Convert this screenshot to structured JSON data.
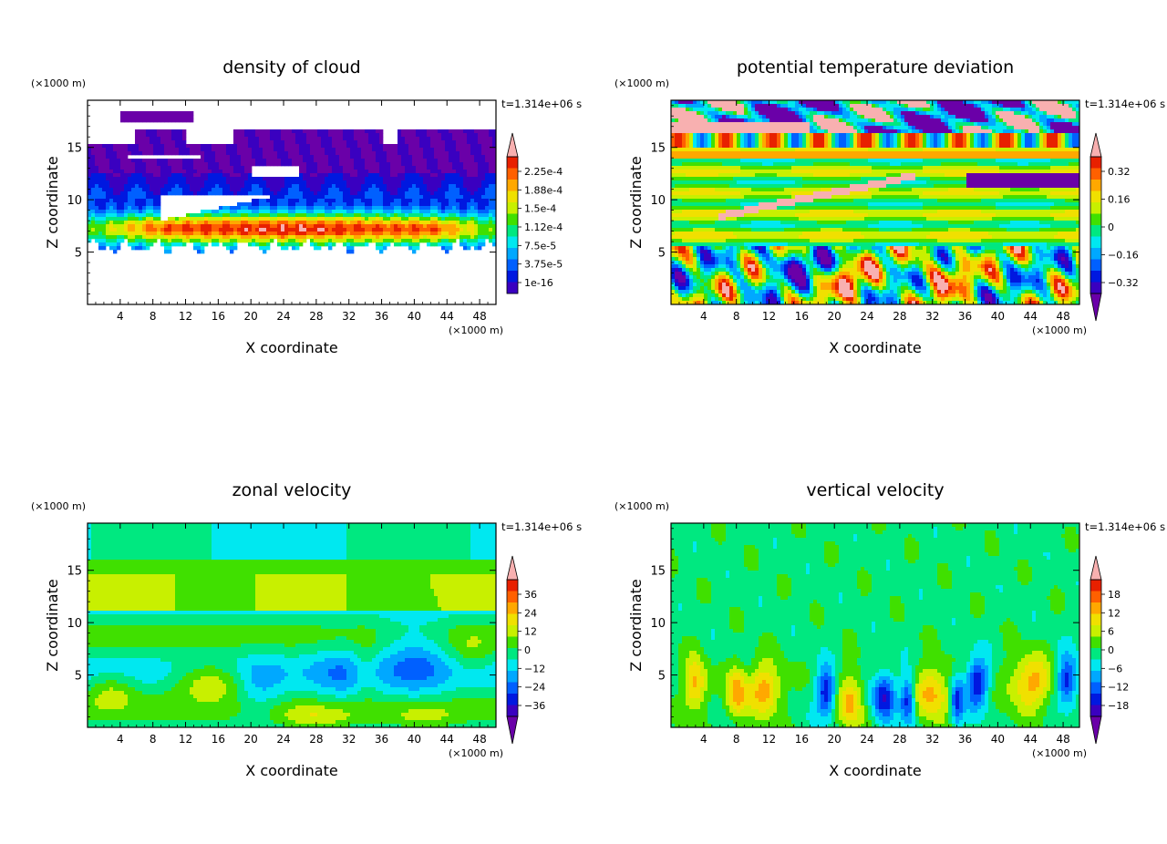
{
  "chart_data": [
    {
      "type": "heatmap",
      "title": "density of cloud",
      "xlabel": "X coordinate",
      "ylabel": "Z coordinate",
      "x_unit": "(×1000 m)",
      "y_unit": "(×1000 m)",
      "time_label": "t=1.314e+06 s",
      "xlim": [
        0,
        50
      ],
      "ylim": [
        0,
        19.5
      ],
      "xticks": [
        "4",
        "8",
        "12",
        "16",
        "20",
        "24",
        "28",
        "32",
        "36",
        "40",
        "44",
        "48"
      ],
      "yticks": [
        "5",
        "10",
        "15"
      ],
      "colorbar_labels": [
        "2.25e-4",
        "1.88e-4",
        "1.5e-4",
        "1.12e-4",
        "7.5e-5",
        "3.75e-5",
        "1e-16"
      ],
      "colorbar_triangles": "top",
      "field": "cloud"
    },
    {
      "type": "heatmap",
      "title": "potential temperature deviation",
      "xlabel": "X coordinate",
      "ylabel": "Z coordinate",
      "x_unit": "(×1000 m)",
      "y_unit": "(×1000 m)",
      "time_label": "t=1.314e+06 s",
      "xlim": [
        0,
        50
      ],
      "ylim": [
        0,
        19.5
      ],
      "xticks": [
        "4",
        "8",
        "12",
        "16",
        "20",
        "24",
        "28",
        "32",
        "36",
        "40",
        "44",
        "48"
      ],
      "yticks": [
        "5",
        "10",
        "15"
      ],
      "colorbar_labels": [
        "0.32",
        "0.16",
        "0",
        "-0.16",
        "-0.32"
      ],
      "colorbar_triangles": "both",
      "field": "theta"
    },
    {
      "type": "heatmap",
      "title": "zonal velocity",
      "xlabel": "X coordinate",
      "ylabel": "Z coordinate",
      "x_unit": "(×1000 m)",
      "y_unit": "(×1000 m)",
      "time_label": "t=1.314e+06 s",
      "xlim": [
        0,
        50
      ],
      "ylim": [
        0,
        19.5
      ],
      "xticks": [
        "4",
        "8",
        "12",
        "16",
        "20",
        "24",
        "28",
        "32",
        "36",
        "40",
        "44",
        "48"
      ],
      "yticks": [
        "5",
        "10",
        "15"
      ],
      "colorbar_labels": [
        "36",
        "24",
        "12",
        "0",
        "-12",
        "-24",
        "-36"
      ],
      "colorbar_triangles": "both",
      "field": "u"
    },
    {
      "type": "heatmap",
      "title": "vertical velocity",
      "xlabel": "X coordinate",
      "ylabel": "Z coordinate",
      "x_unit": "(×1000 m)",
      "y_unit": "(×1000 m)",
      "time_label": "t=1.314e+06 s",
      "xlim": [
        0,
        50
      ],
      "ylim": [
        0,
        19.5
      ],
      "xticks": [
        "4",
        "8",
        "12",
        "16",
        "20",
        "24",
        "28",
        "32",
        "36",
        "40",
        "44",
        "48"
      ],
      "yticks": [
        "5",
        "10",
        "15"
      ],
      "colorbar_labels": [
        "18",
        "12",
        "6",
        "0",
        "-6",
        "-12",
        "-18"
      ],
      "colorbar_triangles": "both",
      "field": "w"
    }
  ],
  "colors": {
    "palette": [
      "#6a00a8",
      "#3a00c0",
      "#0018e0",
      "#0060ff",
      "#00a8ff",
      "#00e8f0",
      "#00e880",
      "#40e000",
      "#c8f000",
      "#f0e000",
      "#ffa800",
      "#ff6000",
      "#e82000",
      "#f8b0b0"
    ],
    "frame": "#000000"
  }
}
